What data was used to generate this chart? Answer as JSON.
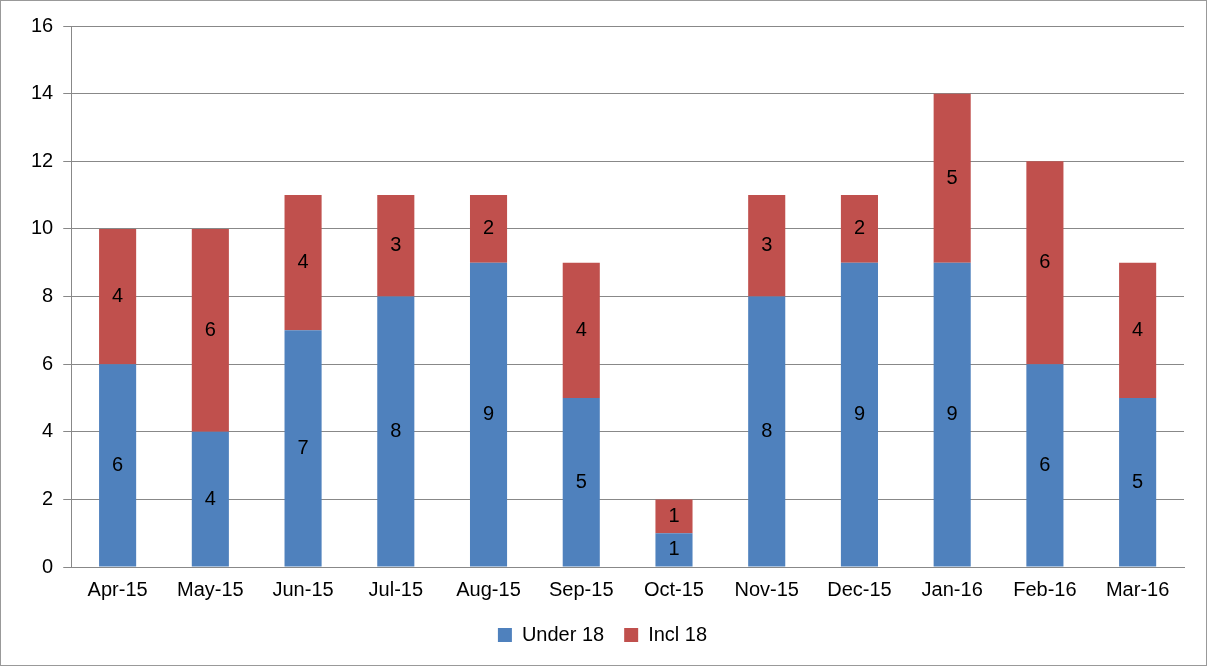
{
  "chart_data": {
    "type": "bar",
    "stacked": true,
    "categories": [
      "Apr-15",
      "May-15",
      "Jun-15",
      "Jul-15",
      "Aug-15",
      "Sep-15",
      "Oct-15",
      "Nov-15",
      "Dec-15",
      "Jan-16",
      "Feb-16",
      "Mar-16"
    ],
    "series": [
      {
        "name": "Under 18",
        "color": "#4f81bd",
        "values": [
          6,
          4,
          7,
          8,
          9,
          5,
          1,
          8,
          9,
          9,
          6,
          5
        ]
      },
      {
        "name": "Incl 18",
        "color": "#c0504d",
        "values": [
          4,
          6,
          4,
          3,
          2,
          4,
          1,
          3,
          2,
          5,
          6,
          4
        ]
      }
    ],
    "ylim": [
      0,
      16
    ],
    "yticks": [
      0,
      2,
      4,
      6,
      8,
      10,
      12,
      14,
      16
    ],
    "grid": "y",
    "legend": "bottom",
    "data_labels": true
  }
}
